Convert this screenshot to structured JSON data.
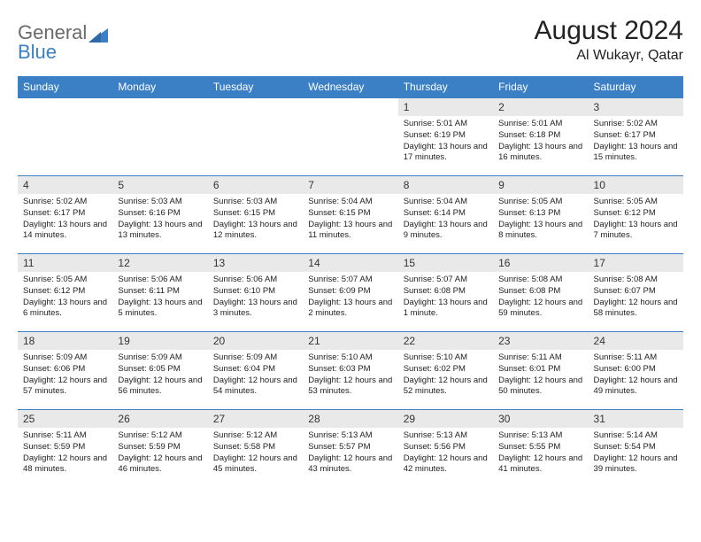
{
  "logo": {
    "word1": "General",
    "word2": "Blue",
    "icon_color": "#3b7fc4",
    "text_gray": "#6a6a6a"
  },
  "title": "August 2024",
  "location": "Al Wukayr, Qatar",
  "header_bg": "#3b7fc4",
  "header_fg": "#ffffff",
  "daynum_bg": "#e9e9e9",
  "row_border": "#3b7fc4",
  "weekdays": [
    "Sunday",
    "Monday",
    "Tuesday",
    "Wednesday",
    "Thursday",
    "Friday",
    "Saturday"
  ],
  "weeks": [
    [
      null,
      null,
      null,
      null,
      {
        "d": "1",
        "sr": "5:01 AM",
        "ss": "6:19 PM",
        "dl": "13 hours and 17 minutes."
      },
      {
        "d": "2",
        "sr": "5:01 AM",
        "ss": "6:18 PM",
        "dl": "13 hours and 16 minutes."
      },
      {
        "d": "3",
        "sr": "5:02 AM",
        "ss": "6:17 PM",
        "dl": "13 hours and 15 minutes."
      }
    ],
    [
      {
        "d": "4",
        "sr": "5:02 AM",
        "ss": "6:17 PM",
        "dl": "13 hours and 14 minutes."
      },
      {
        "d": "5",
        "sr": "5:03 AM",
        "ss": "6:16 PM",
        "dl": "13 hours and 13 minutes."
      },
      {
        "d": "6",
        "sr": "5:03 AM",
        "ss": "6:15 PM",
        "dl": "13 hours and 12 minutes."
      },
      {
        "d": "7",
        "sr": "5:04 AM",
        "ss": "6:15 PM",
        "dl": "13 hours and 11 minutes."
      },
      {
        "d": "8",
        "sr": "5:04 AM",
        "ss": "6:14 PM",
        "dl": "13 hours and 9 minutes."
      },
      {
        "d": "9",
        "sr": "5:05 AM",
        "ss": "6:13 PM",
        "dl": "13 hours and 8 minutes."
      },
      {
        "d": "10",
        "sr": "5:05 AM",
        "ss": "6:12 PM",
        "dl": "13 hours and 7 minutes."
      }
    ],
    [
      {
        "d": "11",
        "sr": "5:05 AM",
        "ss": "6:12 PM",
        "dl": "13 hours and 6 minutes."
      },
      {
        "d": "12",
        "sr": "5:06 AM",
        "ss": "6:11 PM",
        "dl": "13 hours and 5 minutes."
      },
      {
        "d": "13",
        "sr": "5:06 AM",
        "ss": "6:10 PM",
        "dl": "13 hours and 3 minutes."
      },
      {
        "d": "14",
        "sr": "5:07 AM",
        "ss": "6:09 PM",
        "dl": "13 hours and 2 minutes."
      },
      {
        "d": "15",
        "sr": "5:07 AM",
        "ss": "6:08 PM",
        "dl": "13 hours and 1 minute."
      },
      {
        "d": "16",
        "sr": "5:08 AM",
        "ss": "6:08 PM",
        "dl": "12 hours and 59 minutes."
      },
      {
        "d": "17",
        "sr": "5:08 AM",
        "ss": "6:07 PM",
        "dl": "12 hours and 58 minutes."
      }
    ],
    [
      {
        "d": "18",
        "sr": "5:09 AM",
        "ss": "6:06 PM",
        "dl": "12 hours and 57 minutes."
      },
      {
        "d": "19",
        "sr": "5:09 AM",
        "ss": "6:05 PM",
        "dl": "12 hours and 56 minutes."
      },
      {
        "d": "20",
        "sr": "5:09 AM",
        "ss": "6:04 PM",
        "dl": "12 hours and 54 minutes."
      },
      {
        "d": "21",
        "sr": "5:10 AM",
        "ss": "6:03 PM",
        "dl": "12 hours and 53 minutes."
      },
      {
        "d": "22",
        "sr": "5:10 AM",
        "ss": "6:02 PM",
        "dl": "12 hours and 52 minutes."
      },
      {
        "d": "23",
        "sr": "5:11 AM",
        "ss": "6:01 PM",
        "dl": "12 hours and 50 minutes."
      },
      {
        "d": "24",
        "sr": "5:11 AM",
        "ss": "6:00 PM",
        "dl": "12 hours and 49 minutes."
      }
    ],
    [
      {
        "d": "25",
        "sr": "5:11 AM",
        "ss": "5:59 PM",
        "dl": "12 hours and 48 minutes."
      },
      {
        "d": "26",
        "sr": "5:12 AM",
        "ss": "5:59 PM",
        "dl": "12 hours and 46 minutes."
      },
      {
        "d": "27",
        "sr": "5:12 AM",
        "ss": "5:58 PM",
        "dl": "12 hours and 45 minutes."
      },
      {
        "d": "28",
        "sr": "5:13 AM",
        "ss": "5:57 PM",
        "dl": "12 hours and 43 minutes."
      },
      {
        "d": "29",
        "sr": "5:13 AM",
        "ss": "5:56 PM",
        "dl": "12 hours and 42 minutes."
      },
      {
        "d": "30",
        "sr": "5:13 AM",
        "ss": "5:55 PM",
        "dl": "12 hours and 41 minutes."
      },
      {
        "d": "31",
        "sr": "5:14 AM",
        "ss": "5:54 PM",
        "dl": "12 hours and 39 minutes."
      }
    ]
  ],
  "labels": {
    "sunrise": "Sunrise:",
    "sunset": "Sunset:",
    "daylight": "Daylight:"
  }
}
